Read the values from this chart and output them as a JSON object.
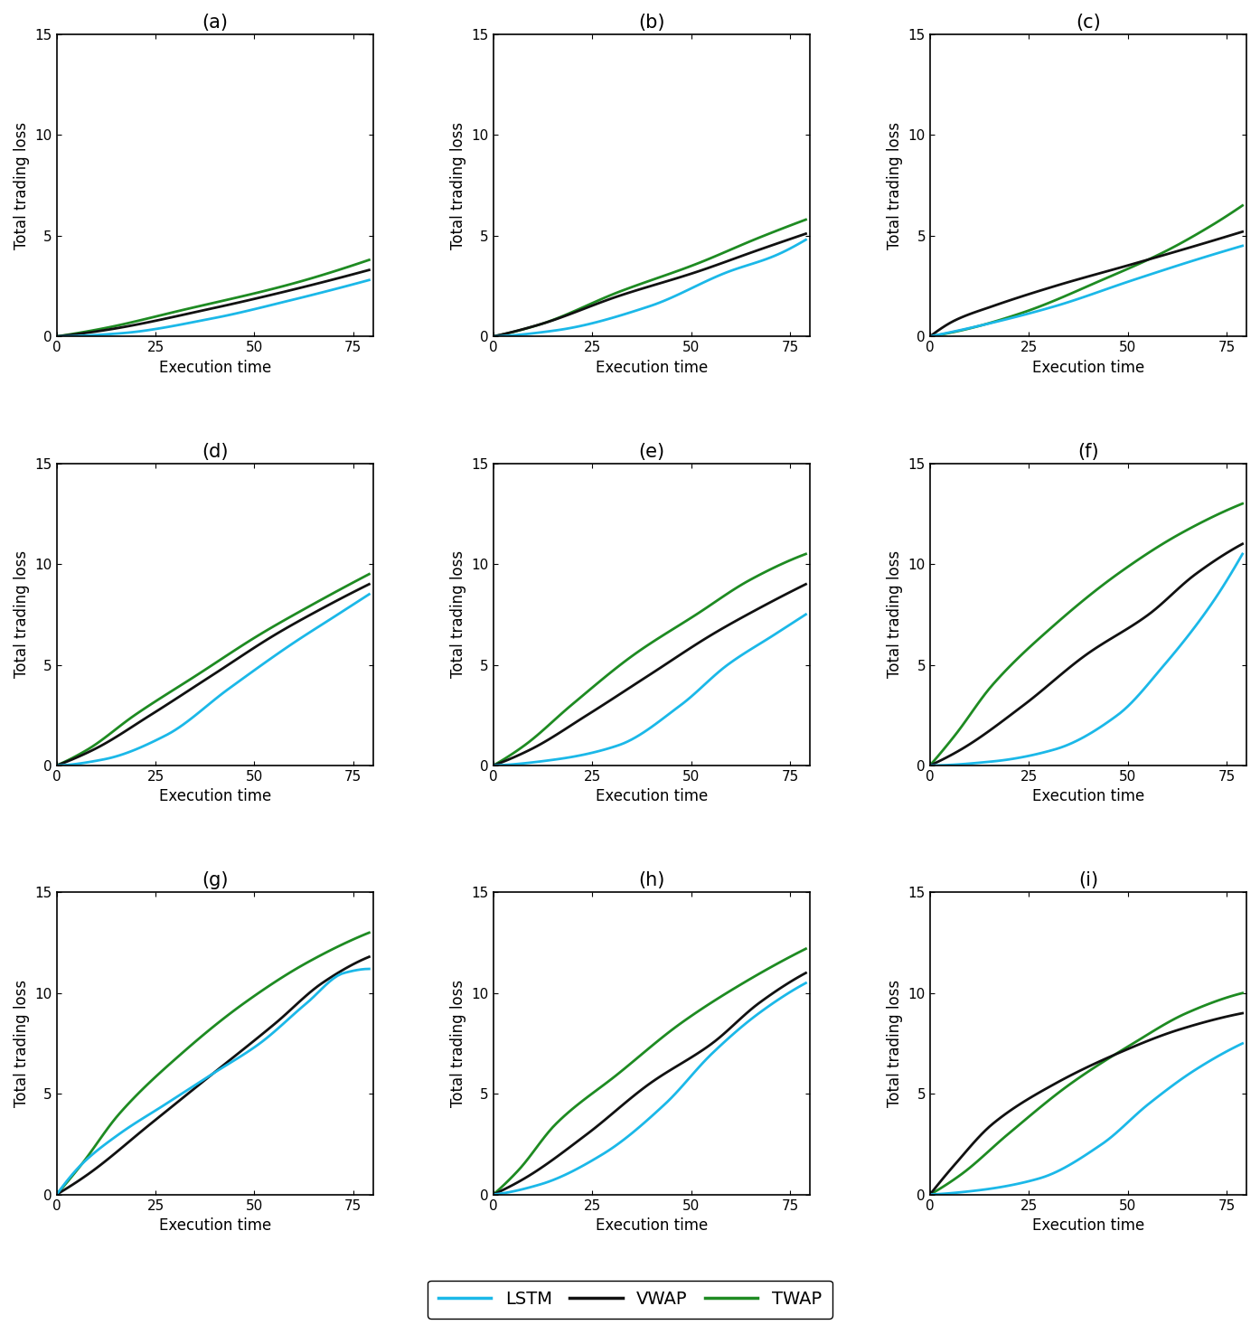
{
  "subplots": [
    {
      "label": "(a)"
    },
    {
      "label": "(b)"
    },
    {
      "label": "(c)"
    },
    {
      "label": "(d)"
    },
    {
      "label": "(e)"
    },
    {
      "label": "(f)"
    },
    {
      "label": "(g)"
    },
    {
      "label": "(h)"
    },
    {
      "label": "(i)"
    }
  ],
  "colors": {
    "lstm": "#1BB8E8",
    "vwap": "#111111",
    "twap": "#1E8B22"
  },
  "xlim": [
    0,
    80
  ],
  "ylim": [
    0,
    15
  ],
  "xticks": [
    0,
    25,
    50,
    75
  ],
  "yticks": [
    0,
    5,
    10,
    15
  ],
  "xlabel": "Execution time",
  "ylabel": "Total trading loss",
  "linewidth": 2.0,
  "title_fontsize": 15,
  "label_fontsize": 12,
  "tick_fontsize": 11
}
